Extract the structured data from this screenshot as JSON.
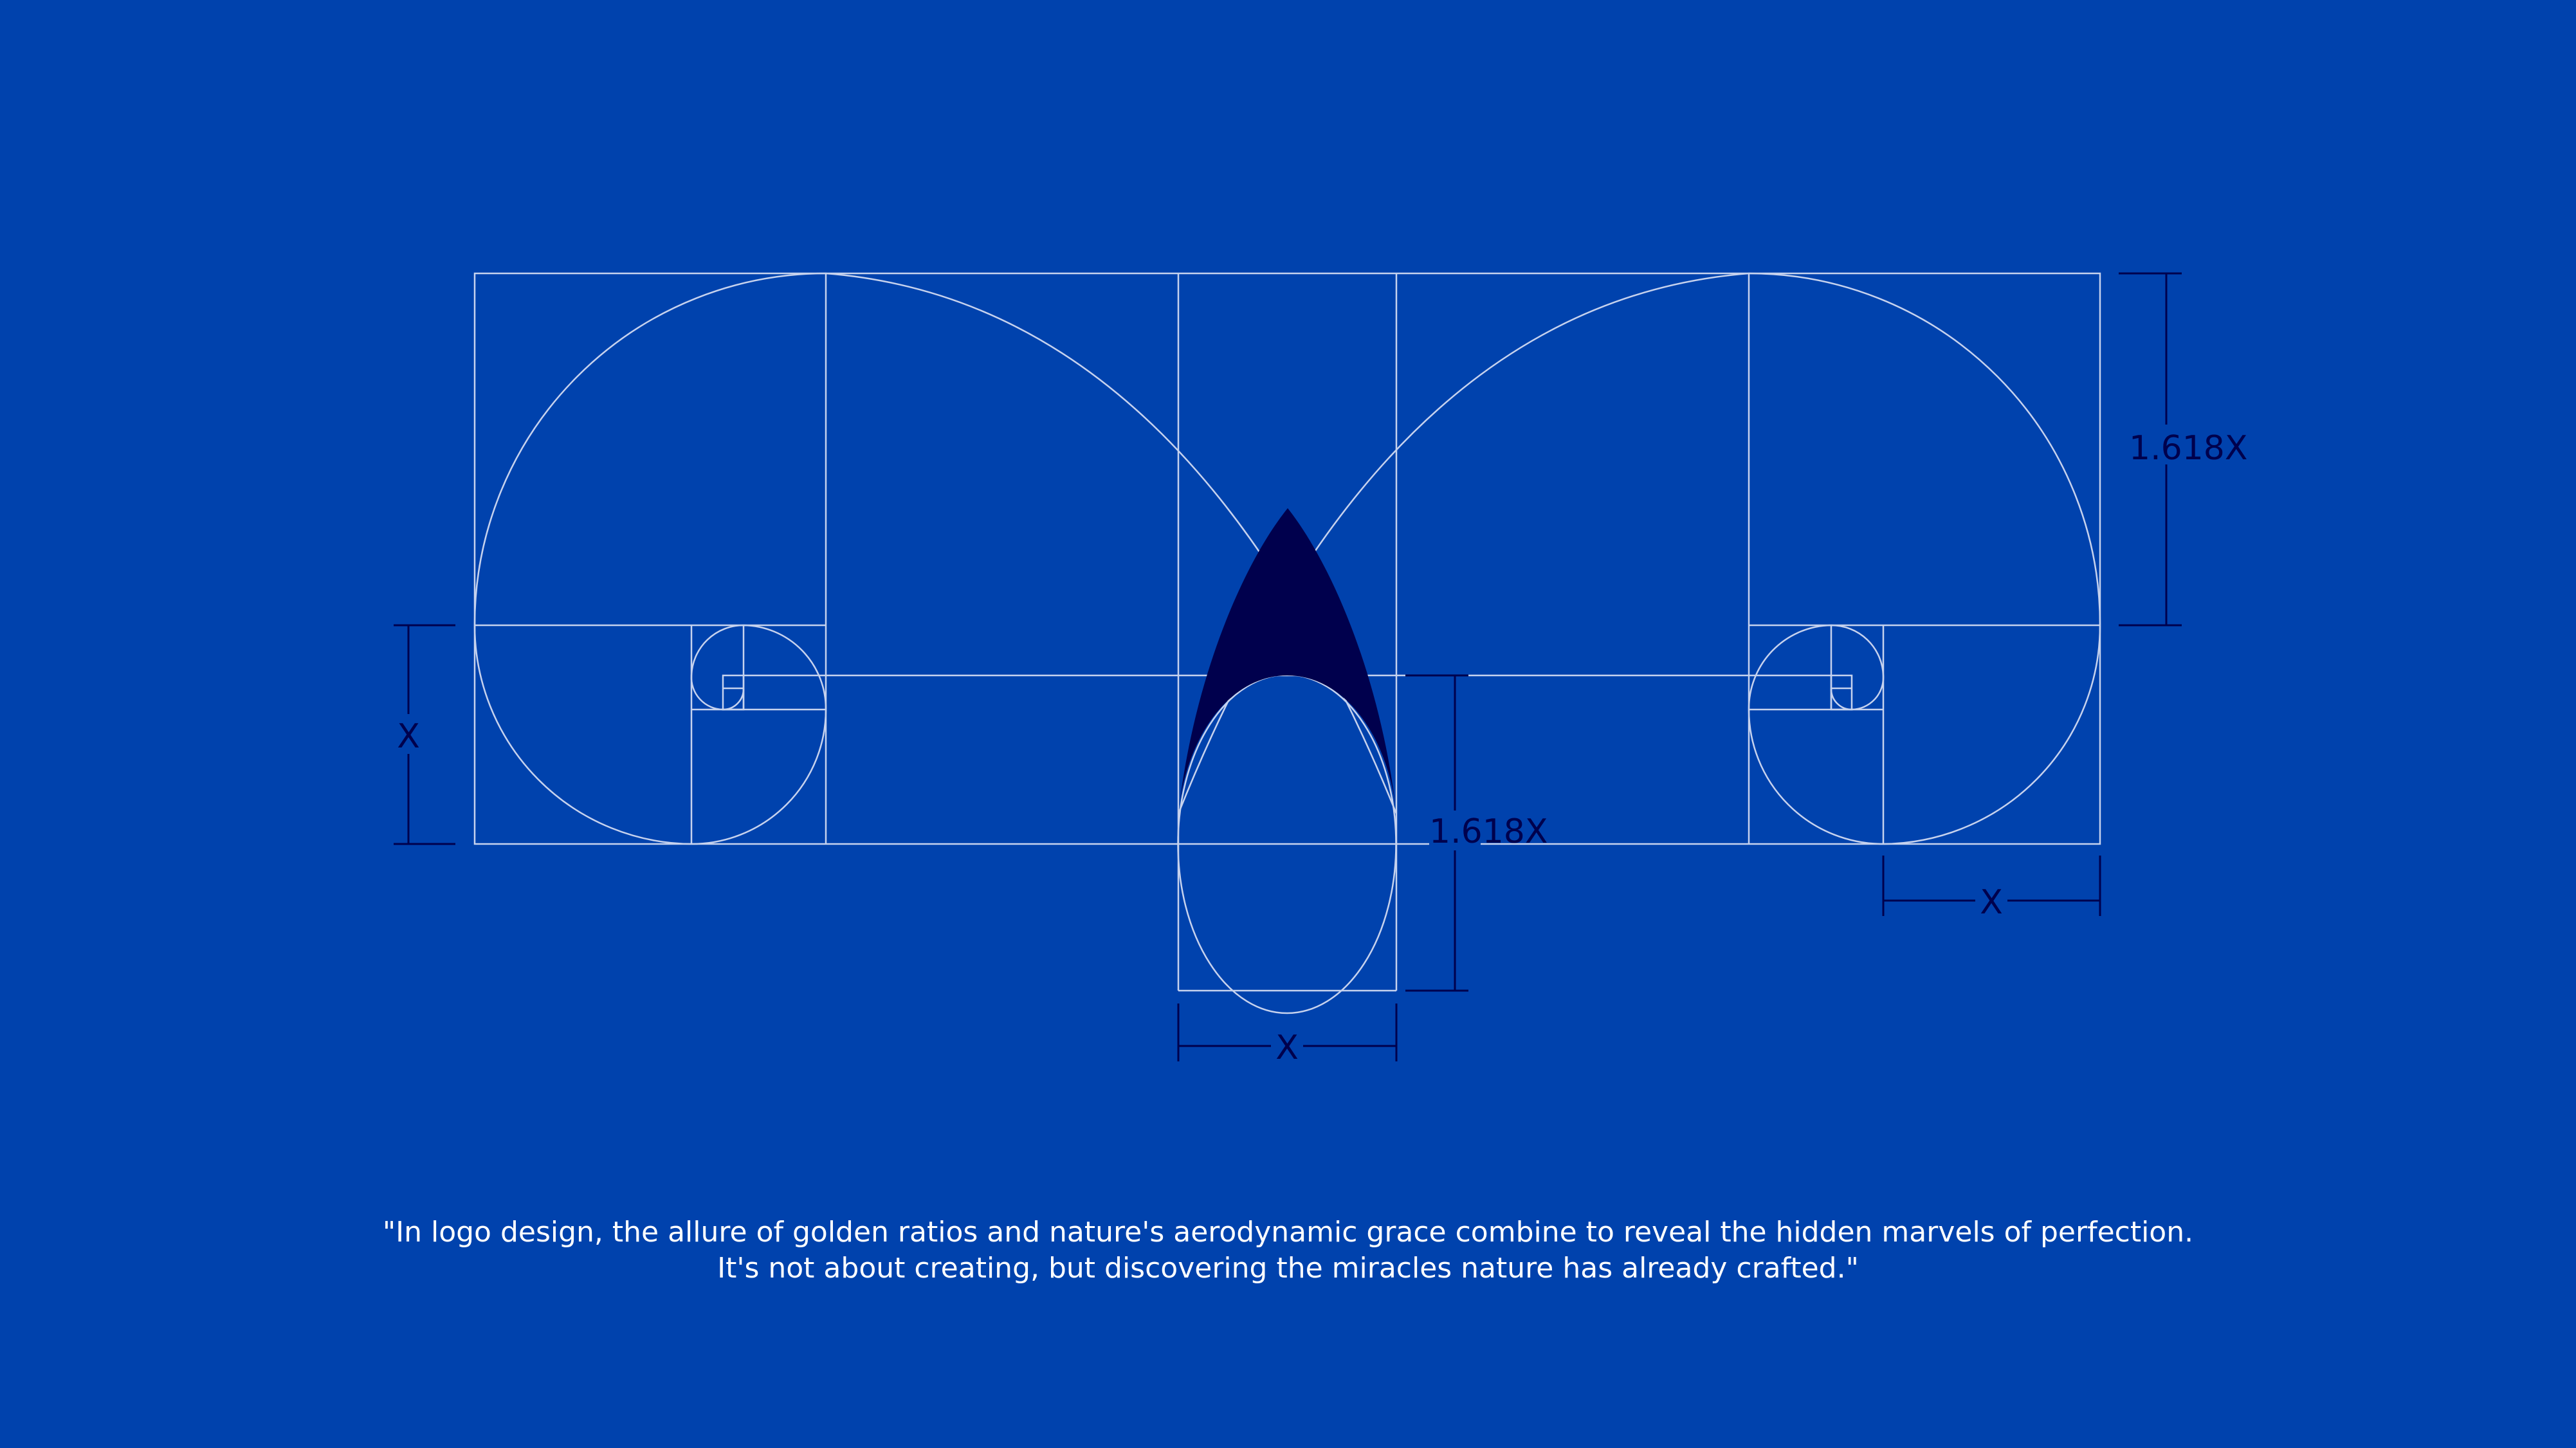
{
  "colors": {
    "background": "#0042ad",
    "construction_line": "#c6d2ee",
    "shape_fill": "#00004d",
    "dimension_line": "#00004d",
    "quote_text": "#ffffff"
  },
  "dimensions": {
    "left_height_label": "X",
    "right_height_label": "1.618X",
    "center_height_label": "1.618X",
    "center_width_label": "X",
    "right_width_label": "X"
  },
  "quote": {
    "line1": "\"In logo design, the allure of golden ratios and nature's aerodynamic grace combine to reveal the hidden marvels of perfection.",
    "line2": "It's not about creating, but discovering the miracles nature has already crafted.\""
  }
}
